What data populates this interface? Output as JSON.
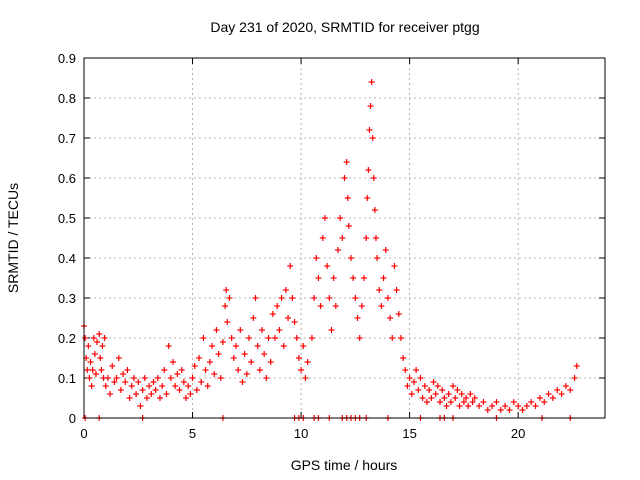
{
  "chart_data": {
    "type": "scatter",
    "title": "Day 231 of 2020, SRMTID for receiver ptgg",
    "xlabel": "GPS time / hours",
    "ylabel": "SRMTID / TECUs",
    "xlim": [
      0,
      24
    ],
    "ylim": [
      0,
      0.9
    ],
    "grid": true,
    "marker": "+",
    "color": "#ff0000",
    "x_ticks": [
      0,
      5,
      10,
      15,
      20
    ],
    "x_tick_labels": [
      "0",
      "5",
      "10",
      "15",
      "20"
    ],
    "y_ticks": [
      0,
      0.1,
      0.2,
      0.3,
      0.4,
      0.5,
      0.6,
      0.7,
      0.8,
      0.9
    ],
    "y_tick_labels": [
      "0",
      "0.1",
      "0.2",
      "0.3",
      "0.4",
      "0.5",
      "0.6",
      "0.7",
      "0.8",
      "0.9"
    ],
    "series": [
      {
        "name": "SRMTID",
        "points": [
          [
            0.0,
            0.23
          ],
          [
            0.05,
            0.2
          ],
          [
            0.1,
            0.15
          ],
          [
            0.15,
            0.12
          ],
          [
            0.2,
            0.18
          ],
          [
            0.25,
            0.1
          ],
          [
            0.3,
            0.14
          ],
          [
            0.35,
            0.08
          ],
          [
            0.4,
            0.12
          ],
          [
            0.45,
            0.2
          ],
          [
            0.5,
            0.16
          ],
          [
            0.55,
            0.11
          ],
          [
            0.6,
            0.19
          ],
          [
            0.7,
            0.21
          ],
          [
            0.75,
            0.15
          ],
          [
            0.8,
            0.12
          ],
          [
            0.85,
            0.18
          ],
          [
            0.9,
            0.1
          ],
          [
            0.95,
            0.2
          ],
          [
            1.0,
            0.08
          ],
          [
            1.1,
            0.1
          ],
          [
            1.2,
            0.06
          ],
          [
            1.3,
            0.13
          ],
          [
            1.4,
            0.09
          ],
          [
            1.5,
            0.1
          ],
          [
            1.6,
            0.15
          ],
          [
            1.7,
            0.07
          ],
          [
            1.8,
            0.11
          ],
          [
            1.9,
            0.09
          ],
          [
            2.0,
            0.12
          ],
          [
            2.1,
            0.05
          ],
          [
            2.2,
            0.08
          ],
          [
            2.3,
            0.1
          ],
          [
            2.4,
            0.06
          ],
          [
            2.5,
            0.09
          ],
          [
            2.6,
            0.03
          ],
          [
            2.7,
            0.07
          ],
          [
            2.8,
            0.1
          ],
          [
            2.9,
            0.05
          ],
          [
            3.0,
            0.08
          ],
          [
            3.1,
            0.06
          ],
          [
            3.2,
            0.09
          ],
          [
            3.3,
            0.07
          ],
          [
            3.4,
            0.1
          ],
          [
            3.5,
            0.05
          ],
          [
            3.6,
            0.08
          ],
          [
            3.7,
            0.12
          ],
          [
            3.8,
            0.06
          ],
          [
            3.9,
            0.18
          ],
          [
            4.0,
            0.1
          ],
          [
            4.1,
            0.14
          ],
          [
            4.2,
            0.08
          ],
          [
            4.3,
            0.11
          ],
          [
            4.4,
            0.07
          ],
          [
            4.5,
            0.12
          ],
          [
            4.6,
            0.09
          ],
          [
            4.7,
            0.05
          ],
          [
            4.8,
            0.08
          ],
          [
            4.9,
            0.06
          ],
          [
            5.0,
            0.1
          ],
          [
            5.1,
            0.13
          ],
          [
            5.2,
            0.07
          ],
          [
            5.3,
            0.15
          ],
          [
            5.4,
            0.09
          ],
          [
            5.5,
            0.2
          ],
          [
            5.6,
            0.12
          ],
          [
            5.7,
            0.08
          ],
          [
            5.8,
            0.14
          ],
          [
            5.9,
            0.18
          ],
          [
            6.0,
            0.11
          ],
          [
            6.1,
            0.22
          ],
          [
            6.2,
            0.16
          ],
          [
            6.3,
            0.1
          ],
          [
            6.4,
            0.19
          ],
          [
            6.5,
            0.28
          ],
          [
            6.55,
            0.32
          ],
          [
            6.6,
            0.24
          ],
          [
            6.7,
            0.3
          ],
          [
            6.8,
            0.2
          ],
          [
            6.9,
            0.15
          ],
          [
            7.0,
            0.18
          ],
          [
            7.1,
            0.12
          ],
          [
            7.2,
            0.22
          ],
          [
            7.3,
            0.09
          ],
          [
            7.4,
            0.16
          ],
          [
            7.5,
            0.11
          ],
          [
            7.6,
            0.2
          ],
          [
            7.7,
            0.14
          ],
          [
            7.8,
            0.25
          ],
          [
            7.9,
            0.3
          ],
          [
            8.0,
            0.18
          ],
          [
            8.1,
            0.12
          ],
          [
            8.2,
            0.22
          ],
          [
            8.3,
            0.16
          ],
          [
            8.4,
            0.1
          ],
          [
            8.5,
            0.2
          ],
          [
            8.6,
            0.14
          ],
          [
            8.7,
            0.26
          ],
          [
            8.8,
            0.2
          ],
          [
            8.9,
            0.28
          ],
          [
            9.0,
            0.22
          ],
          [
            9.1,
            0.3
          ],
          [
            9.2,
            0.18
          ],
          [
            9.3,
            0.32
          ],
          [
            9.4,
            0.25
          ],
          [
            9.5,
            0.38
          ],
          [
            9.6,
            0.3
          ],
          [
            9.7,
            0.24
          ],
          [
            9.8,
            0.2
          ],
          [
            9.9,
            0.15
          ],
          [
            10.0,
            0.12
          ],
          [
            10.1,
            0.18
          ],
          [
            10.2,
            0.1
          ],
          [
            10.3,
            0.14
          ],
          [
            10.5,
            0.2
          ],
          [
            10.6,
            0.3
          ],
          [
            10.7,
            0.4
          ],
          [
            10.8,
            0.35
          ],
          [
            10.9,
            0.28
          ],
          [
            11.0,
            0.45
          ],
          [
            11.1,
            0.5
          ],
          [
            11.2,
            0.38
          ],
          [
            11.3,
            0.3
          ],
          [
            11.4,
            0.22
          ],
          [
            11.5,
            0.35
          ],
          [
            11.6,
            0.28
          ],
          [
            11.7,
            0.42
          ],
          [
            11.8,
            0.5
          ],
          [
            11.9,
            0.45
          ],
          [
            12.0,
            0.6
          ],
          [
            12.1,
            0.64
          ],
          [
            12.15,
            0.55
          ],
          [
            12.2,
            0.48
          ],
          [
            12.3,
            0.4
          ],
          [
            12.4,
            0.35
          ],
          [
            12.5,
            0.3
          ],
          [
            12.6,
            0.25
          ],
          [
            12.7,
            0.2
          ],
          [
            12.8,
            0.28
          ],
          [
            12.9,
            0.35
          ],
          [
            13.0,
            0.45
          ],
          [
            13.05,
            0.55
          ],
          [
            13.1,
            0.62
          ],
          [
            13.15,
            0.72
          ],
          [
            13.2,
            0.78
          ],
          [
            13.25,
            0.84
          ],
          [
            13.3,
            0.7
          ],
          [
            13.35,
            0.6
          ],
          [
            13.4,
            0.52
          ],
          [
            13.45,
            0.45
          ],
          [
            13.5,
            0.4
          ],
          [
            13.6,
            0.32
          ],
          [
            13.7,
            0.28
          ],
          [
            13.8,
            0.35
          ],
          [
            13.9,
            0.42
          ],
          [
            14.0,
            0.3
          ],
          [
            14.1,
            0.25
          ],
          [
            14.2,
            0.2
          ],
          [
            14.3,
            0.38
          ],
          [
            14.4,
            0.32
          ],
          [
            14.5,
            0.26
          ],
          [
            14.6,
            0.2
          ],
          [
            14.7,
            0.15
          ],
          [
            14.8,
            0.12
          ],
          [
            14.9,
            0.08
          ],
          [
            15.0,
            0.1
          ],
          [
            15.1,
            0.06
          ],
          [
            15.2,
            0.09
          ],
          [
            15.3,
            0.12
          ],
          [
            15.4,
            0.07
          ],
          [
            15.5,
            0.1
          ],
          [
            15.6,
            0.05
          ],
          [
            15.7,
            0.08
          ],
          [
            15.8,
            0.04
          ],
          [
            15.9,
            0.07
          ],
          [
            16.0,
            0.05
          ],
          [
            16.1,
            0.09
          ],
          [
            16.2,
            0.06
          ],
          [
            16.3,
            0.08
          ],
          [
            16.4,
            0.04
          ],
          [
            16.5,
            0.07
          ],
          [
            16.6,
            0.05
          ],
          [
            16.7,
            0.03
          ],
          [
            16.8,
            0.06
          ],
          [
            16.9,
            0.04
          ],
          [
            17.0,
            0.08
          ],
          [
            17.1,
            0.05
          ],
          [
            17.2,
            0.07
          ],
          [
            17.3,
            0.03
          ],
          [
            17.4,
            0.06
          ],
          [
            17.5,
            0.04
          ],
          [
            17.6,
            0.05
          ],
          [
            17.7,
            0.03
          ],
          [
            17.8,
            0.06
          ],
          [
            17.9,
            0.04
          ],
          [
            18.0,
            0.05
          ],
          [
            18.2,
            0.03
          ],
          [
            18.4,
            0.04
          ],
          [
            18.6,
            0.02
          ],
          [
            18.8,
            0.03
          ],
          [
            19.0,
            0.04
          ],
          [
            19.2,
            0.02
          ],
          [
            19.4,
            0.03
          ],
          [
            19.6,
            0.02
          ],
          [
            19.8,
            0.04
          ],
          [
            20.0,
            0.03
          ],
          [
            20.2,
            0.02
          ],
          [
            20.4,
            0.03
          ],
          [
            20.6,
            0.04
          ],
          [
            20.8,
            0.03
          ],
          [
            21.0,
            0.05
          ],
          [
            21.2,
            0.04
          ],
          [
            21.4,
            0.06
          ],
          [
            21.6,
            0.05
          ],
          [
            21.8,
            0.07
          ],
          [
            22.0,
            0.06
          ],
          [
            22.2,
            0.08
          ],
          [
            22.4,
            0.07
          ],
          [
            22.6,
            0.1
          ],
          [
            22.7,
            0.13
          ],
          [
            0.05,
            0.0
          ],
          [
            0.7,
            0.0
          ],
          [
            2.7,
            0.0
          ],
          [
            6.4,
            0.0
          ],
          [
            9.7,
            0.0
          ],
          [
            9.9,
            0.0
          ],
          [
            10.1,
            0.0
          ],
          [
            10.6,
            0.0
          ],
          [
            10.8,
            0.0
          ],
          [
            11.3,
            0.0
          ],
          [
            11.9,
            0.0
          ],
          [
            12.1,
            0.0
          ],
          [
            12.3,
            0.0
          ],
          [
            12.5,
            0.0
          ],
          [
            12.7,
            0.0
          ],
          [
            13.0,
            0.0
          ],
          [
            14.0,
            0.0
          ],
          [
            15.5,
            0.0
          ],
          [
            16.4,
            0.0
          ],
          [
            16.6,
            0.0
          ],
          [
            17.0,
            0.0
          ],
          [
            19.0,
            0.0
          ],
          [
            21.1,
            0.0
          ],
          [
            22.4,
            0.0
          ]
        ]
      }
    ]
  }
}
